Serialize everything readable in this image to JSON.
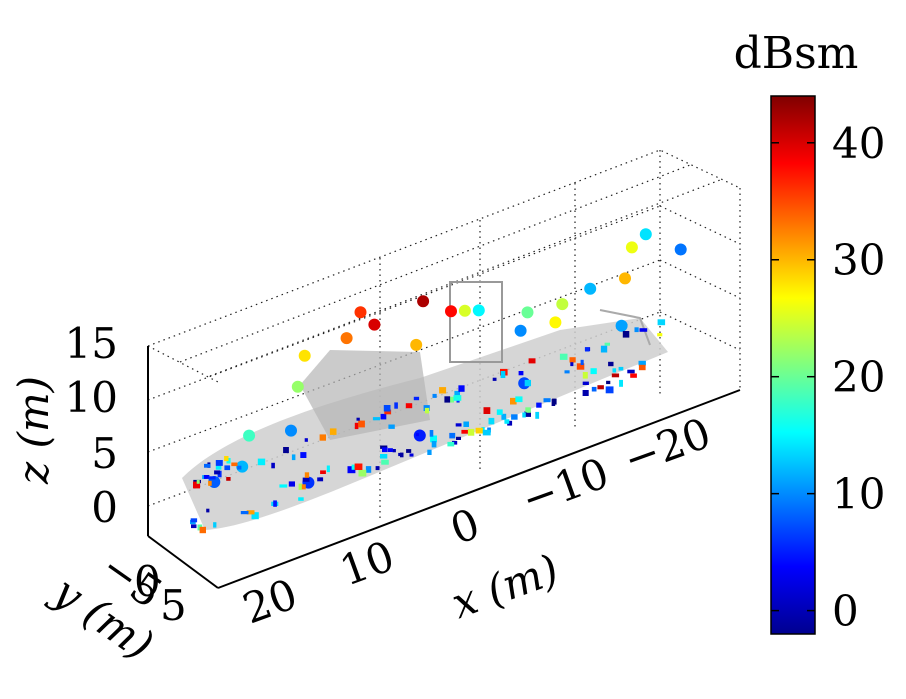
{
  "chart_data": {
    "type": "scatter",
    "subtype": "3d-isar-image",
    "title": "",
    "xlabel": "x (m)",
    "ylabel": "y (m)",
    "zlabel": "z (m)",
    "xlim": [
      -25,
      25
    ],
    "ylim": [
      -5,
      5
    ],
    "zlim": [
      0,
      15
    ],
    "x_ticks": [
      "20",
      "10",
      "0",
      "−10",
      "−20"
    ],
    "y_ticks": [
      "−5",
      "0",
      "5"
    ],
    "z_ticks": [
      "0",
      "5",
      "10",
      "15"
    ],
    "grid": true,
    "colorbar": {
      "title": "dBsm",
      "range": [
        -2,
        44
      ],
      "ticks": [
        "0",
        "10",
        "20",
        "30",
        "40"
      ],
      "colormap": "jet"
    },
    "points": [
      {
        "x": 22,
        "y": 0,
        "z": 3,
        "v": 8
      },
      {
        "x": 20,
        "y": 1,
        "z": 4,
        "v": 12
      },
      {
        "x": 18,
        "y": -1,
        "z": 5,
        "v": 18
      },
      {
        "x": 16,
        "y": 2,
        "z": 6,
        "v": 10
      },
      {
        "x": 14,
        "y": 0,
        "z": 8,
        "v": 22
      },
      {
        "x": 12,
        "y": -2,
        "z": 9,
        "v": 28
      },
      {
        "x": 10,
        "y": 1,
        "z": 11,
        "v": 33
      },
      {
        "x": 8,
        "y": 0,
        "z": 12,
        "v": 36
      },
      {
        "x": 6,
        "y": -1,
        "z": 10,
        "v": 40
      },
      {
        "x": 4,
        "y": 2,
        "z": 9,
        "v": 30
      },
      {
        "x": 2,
        "y": 0,
        "z": 11,
        "v": 42
      },
      {
        "x": 0,
        "y": 1,
        "z": 10,
        "v": 38
      },
      {
        "x": -2,
        "y": 0,
        "z": 9,
        "v": 25
      },
      {
        "x": -4,
        "y": -1,
        "z": 8,
        "v": 15
      },
      {
        "x": -6,
        "y": 2,
        "z": 7,
        "v": 10
      },
      {
        "x": -8,
        "y": 0,
        "z": 7,
        "v": 20
      },
      {
        "x": -10,
        "y": 1,
        "z": 6,
        "v": 27
      },
      {
        "x": -12,
        "y": -1,
        "z": 6,
        "v": 24
      },
      {
        "x": -14,
        "y": 0,
        "z": 7,
        "v": 12
      },
      {
        "x": -16,
        "y": 2,
        "z": 8,
        "v": 30
      },
      {
        "x": -18,
        "y": 0,
        "z": 9,
        "v": 26
      },
      {
        "x": -20,
        "y": -1,
        "z": 9,
        "v": 14
      },
      {
        "x": -22,
        "y": 1,
        "z": 8,
        "v": 9
      },
      {
        "x": 15,
        "y": 3,
        "z": 2,
        "v": 6
      },
      {
        "x": 5,
        "y": 4,
        "z": 3,
        "v": 5
      },
      {
        "x": -5,
        "y": 4,
        "z": 4,
        "v": 7
      },
      {
        "x": -15,
        "y": 3,
        "z": 5,
        "v": 11
      }
    ]
  }
}
